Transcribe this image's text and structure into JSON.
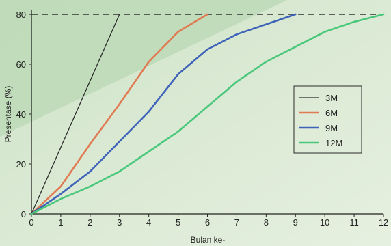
{
  "chart_data": {
    "type": "line",
    "xlabel": "Bulan ke-",
    "ylabel": "Presentase (%)",
    "xlim": [
      0,
      12
    ],
    "ylim": [
      0,
      80
    ],
    "x_ticks": [
      0,
      1,
      2,
      3,
      4,
      5,
      6,
      7,
      8,
      9,
      10,
      11,
      12
    ],
    "y_ticks": [
      0,
      20,
      40,
      60,
      80
    ],
    "reference_line": {
      "y": 80,
      "style": "dashed"
    },
    "legend_position": "right",
    "series": [
      {
        "name": "3M",
        "color": "#2b2b2b",
        "x": [
          0,
          3
        ],
        "y": [
          0,
          80
        ]
      },
      {
        "name": "6M",
        "color": "#e07a52",
        "x": [
          0,
          1,
          2,
          3,
          4,
          5,
          6
        ],
        "y": [
          0,
          11,
          28,
          44,
          61,
          73,
          80
        ]
      },
      {
        "name": "9M",
        "color": "#3f63b8",
        "x": [
          0,
          1,
          2,
          3,
          4,
          5,
          6,
          7,
          8,
          9
        ],
        "y": [
          0,
          8,
          17,
          29,
          41,
          56,
          66,
          72,
          76,
          80
        ]
      },
      {
        "name": "12M",
        "color": "#49c77a",
        "x": [
          0,
          1,
          2,
          3,
          4,
          5,
          6,
          7,
          8,
          9,
          10,
          11,
          12
        ],
        "y": [
          0,
          6,
          11,
          17,
          25,
          33,
          43,
          53,
          61,
          67,
          73,
          77,
          80
        ]
      }
    ]
  }
}
